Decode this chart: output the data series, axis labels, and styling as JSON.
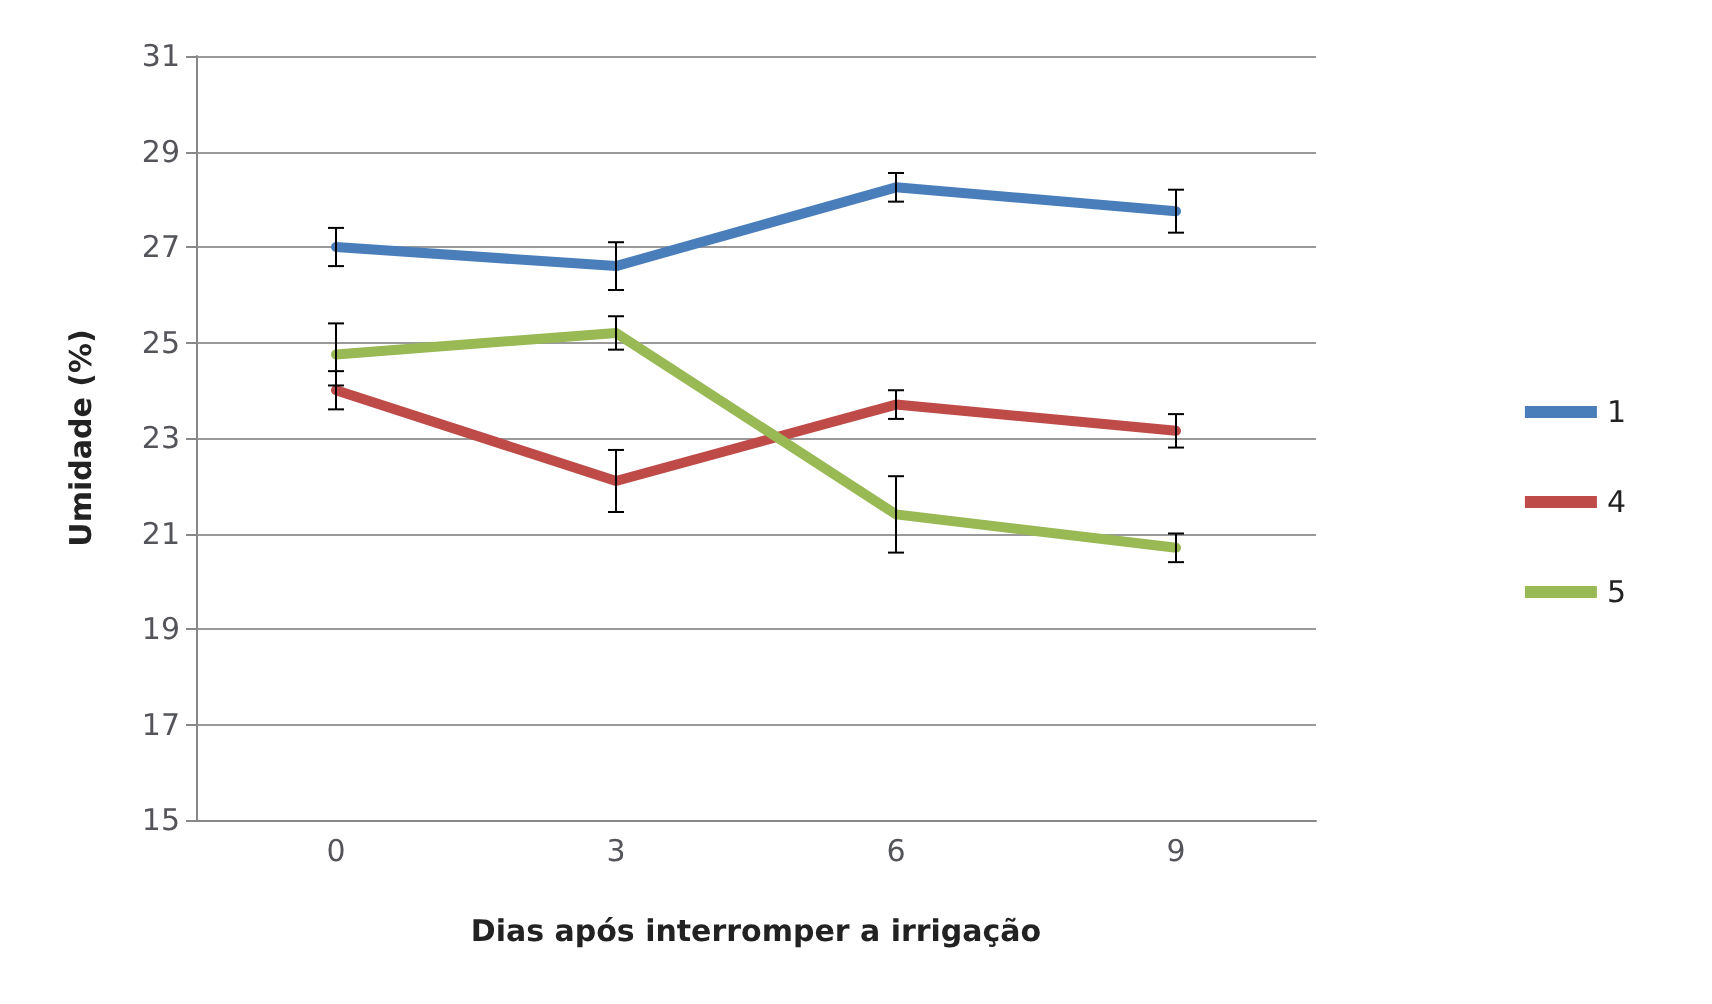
{
  "chart_data": {
    "type": "line",
    "xlabel": "Dias após interromper a irrigação",
    "ylabel": "Umidade (%)",
    "categories": [
      "0",
      "3",
      "6",
      "9"
    ],
    "series": [
      {
        "name": "1",
        "color": "#4a7ebb",
        "values": [
          27.0,
          26.6,
          28.25,
          27.75
        ],
        "errors": [
          0.4,
          0.5,
          0.3,
          0.45
        ]
      },
      {
        "name": "4",
        "color": "#be4b48",
        "values": [
          24.0,
          22.1,
          23.7,
          23.15
        ],
        "errors": [
          0.4,
          0.65,
          0.3,
          0.35
        ]
      },
      {
        "name": "5",
        "color": "#98b954",
        "values": [
          24.75,
          25.2,
          21.4,
          20.7
        ],
        "errors": [
          0.65,
          0.35,
          0.8,
          0.3
        ]
      }
    ],
    "ylim": [
      15,
      31
    ],
    "yticks": [
      15,
      17,
      19,
      21,
      23,
      25,
      27,
      29,
      31
    ],
    "grid": "y",
    "legend": "right",
    "marker": "none",
    "line_style": "solid"
  }
}
